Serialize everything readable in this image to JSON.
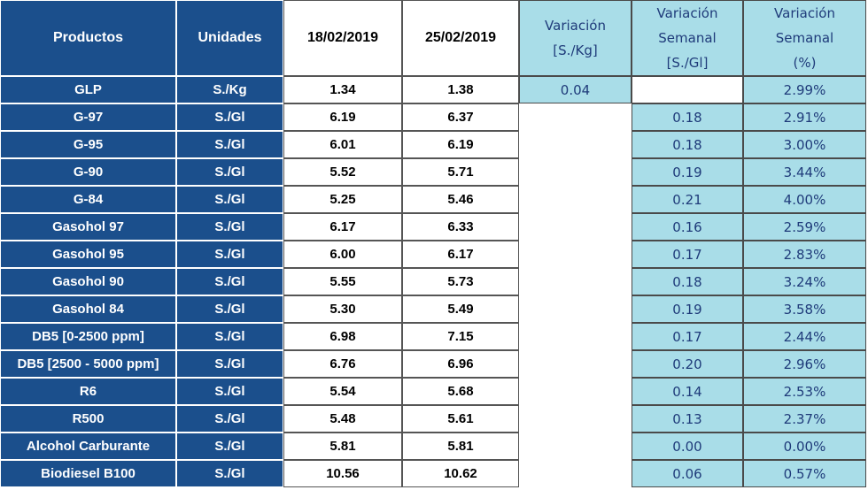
{
  "headers": {
    "productos": "Productos",
    "unidades": "Unidades",
    "date1": "18/02/2019",
    "date2": "25/02/2019",
    "variacion_kg": [
      "Variación",
      "[S./Kg]"
    ],
    "variacion_gl": [
      "Variación",
      "Semanal",
      "[S./Gl]"
    ],
    "variacion_pct": [
      "Variación",
      "Semanal",
      "(%)"
    ]
  },
  "rows": [
    {
      "product": "GLP",
      "unit": "S./Kg",
      "p1": "1.34",
      "p2": "1.38",
      "var_kg": "0.04",
      "var_gl": "",
      "pct": "2.99%"
    },
    {
      "product": "G-97",
      "unit": "S./Gl",
      "p1": "6.19",
      "p2": "6.37",
      "var_kg": null,
      "var_gl": "0.18",
      "pct": "2.91%"
    },
    {
      "product": "G-95",
      "unit": "S./Gl",
      "p1": "6.01",
      "p2": "6.19",
      "var_kg": null,
      "var_gl": "0.18",
      "pct": "3.00%"
    },
    {
      "product": "G-90",
      "unit": "S./Gl",
      "p1": "5.52",
      "p2": "5.71",
      "var_kg": null,
      "var_gl": "0.19",
      "pct": "3.44%"
    },
    {
      "product": "G-84",
      "unit": "S./Gl",
      "p1": "5.25",
      "p2": "5.46",
      "var_kg": null,
      "var_gl": "0.21",
      "pct": "4.00%"
    },
    {
      "product": "Gasohol 97",
      "unit": "S./Gl",
      "p1": "6.17",
      "p2": "6.33",
      "var_kg": null,
      "var_gl": "0.16",
      "pct": "2.59%"
    },
    {
      "product": "Gasohol 95",
      "unit": "S./Gl",
      "p1": "6.00",
      "p2": "6.17",
      "var_kg": null,
      "var_gl": "0.17",
      "pct": "2.83%"
    },
    {
      "product": "Gasohol 90",
      "unit": "S./Gl",
      "p1": "5.55",
      "p2": "5.73",
      "var_kg": null,
      "var_gl": "0.18",
      "pct": "3.24%"
    },
    {
      "product": "Gasohol 84",
      "unit": "S./Gl",
      "p1": "5.30",
      "p2": "5.49",
      "var_kg": null,
      "var_gl": "0.19",
      "pct": "3.58%"
    },
    {
      "product": "DB5 [0-2500 ppm]",
      "unit": "S./Gl",
      "p1": "6.98",
      "p2": "7.15",
      "var_kg": null,
      "var_gl": "0.17",
      "pct": "2.44%"
    },
    {
      "product": "DB5 [2500 - 5000 ppm]",
      "unit": "S./Gl",
      "p1": "6.76",
      "p2": "6.96",
      "var_kg": null,
      "var_gl": "0.20",
      "pct": "2.96%"
    },
    {
      "product": "R6",
      "unit": "S./Gl",
      "p1": "5.54",
      "p2": "5.68",
      "var_kg": null,
      "var_gl": "0.14",
      "pct": "2.53%"
    },
    {
      "product": "R500",
      "unit": "S./Gl",
      "p1": "5.48",
      "p2": "5.61",
      "var_kg": null,
      "var_gl": "0.13",
      "pct": "2.37%"
    },
    {
      "product": "Alcohol Carburante",
      "unit": "S./Gl",
      "p1": "5.81",
      "p2": "5.81",
      "var_kg": null,
      "var_gl": "0.00",
      "pct": "0.00%"
    },
    {
      "product": "Biodiesel B100",
      "unit": "S./Gl",
      "p1": "10.56",
      "p2": "10.62",
      "var_kg": null,
      "var_gl": "0.06",
      "pct": "0.57%"
    }
  ],
  "colors": {
    "header_blue": "#1b4f8c",
    "light_blue": "#a9dde8",
    "blue_text": "#1f3b7a"
  }
}
